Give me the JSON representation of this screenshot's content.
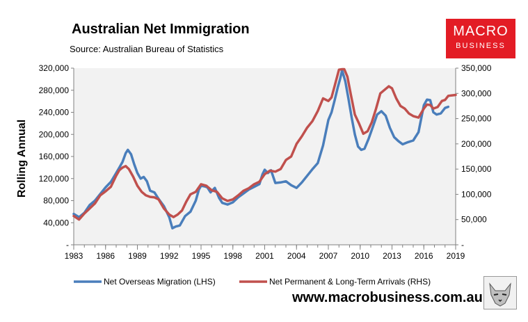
{
  "header": {
    "title": "Australian Net Immigration",
    "subtitle": "Source: Australian Bureau of Statistics"
  },
  "logo": {
    "line1": "MACRO",
    "line2": "BUSINESS",
    "color": "#e31c25"
  },
  "footer": {
    "url": "www.macrobusiness.com.au"
  },
  "chart_data": {
    "type": "line",
    "ylabel": "Rolling Annual",
    "x_ticks": [
      "1983",
      "1986",
      "1989",
      "1992",
      "1995",
      "1998",
      "2001",
      "2004",
      "2007",
      "2010",
      "2013",
      "2016",
      "2019"
    ],
    "y_left_ticks": [
      "-",
      "40,000",
      "80,000",
      "120,000",
      "160,000",
      "200,000",
      "240,000",
      "280,000",
      "320,000"
    ],
    "y_right_ticks": [
      "-",
      "50,000",
      "100,000",
      "150,000",
      "200,000",
      "250,000",
      "300,000",
      "350,000"
    ],
    "ylim_left": [
      0,
      320000
    ],
    "ylim_right": [
      0,
      350000
    ],
    "xlim": [
      1983,
      2019
    ],
    "legend_position": "bottom",
    "series": [
      {
        "name": "Net Overseas Migration (LHS)",
        "axis": "left",
        "color": "#4a7ebb",
        "x": [
          1983,
          1983.5,
          1984,
          1984.5,
          1985,
          1985.5,
          1986,
          1986.5,
          1987,
          1987.3,
          1987.6,
          1987.9,
          1988.1,
          1988.4,
          1988.7,
          1989,
          1989.3,
          1989.6,
          1989.9,
          1990.2,
          1990.6,
          1991,
          1991.5,
          1992,
          1992.3,
          1992.6,
          1993,
          1993.5,
          1994,
          1994.5,
          1994.8,
          1995,
          1995.3,
          1995.6,
          1995.9,
          1996.3,
          1996.7,
          1997,
          1997.5,
          1998,
          1998.5,
          1999,
          1999.5,
          2000,
          2000.5,
          2000.8,
          2001,
          2001.3,
          2001.6,
          2002,
          2002.5,
          2003,
          2003.5,
          2004,
          2004.5,
          2005,
          2005.5,
          2006,
          2006.5,
          2007,
          2007.3,
          2007.6,
          2007.9,
          2008.1,
          2008.3,
          2008.6,
          2008.9,
          2009.2,
          2009.5,
          2009.8,
          2010.1,
          2010.4,
          2010.8,
          2011.2,
          2011.6,
          2012,
          2012.4,
          2012.8,
          2013.2,
          2013.6,
          2014,
          2014.5,
          2015,
          2015.5,
          2016,
          2016.3,
          2016.6,
          2016.9,
          2017.2,
          2017.6,
          2018,
          2018.3
        ],
        "values": [
          56000,
          50000,
          58000,
          72000,
          80000,
          92000,
          104000,
          114000,
          130000,
          140000,
          150000,
          166000,
          172000,
          164000,
          146000,
          130000,
          120000,
          123000,
          115000,
          98000,
          95000,
          83000,
          70000,
          50000,
          30000,
          33000,
          35000,
          52000,
          60000,
          80000,
          100000,
          107000,
          106000,
          104000,
          95000,
          103000,
          85000,
          76000,
          73000,
          77000,
          86000,
          93000,
          100000,
          105000,
          110000,
          128000,
          136000,
          130000,
          135000,
          112000,
          113000,
          115000,
          108000,
          103000,
          113000,
          125000,
          137000,
          148000,
          180000,
          226000,
          240000,
          262000,
          286000,
          300000,
          316000,
          296000,
          264000,
          230000,
          200000,
          178000,
          172000,
          174000,
          192000,
          214000,
          236000,
          242000,
          234000,
          212000,
          195000,
          188000,
          182000,
          186000,
          189000,
          204000,
          253000,
          263000,
          262000,
          240000,
          236000,
          238000,
          248000,
          250000
        ]
      },
      {
        "name": "Net Permanent & Long-Term Arrivals (RHS)",
        "axis": "right",
        "color": "#c0504d",
        "x": [
          1983,
          1983.5,
          1984,
          1984.5,
          1985,
          1985.5,
          1986,
          1986.5,
          1987,
          1987.3,
          1987.6,
          1987.9,
          1988.2,
          1988.6,
          1989,
          1989.4,
          1989.8,
          1990.2,
          1990.6,
          1991,
          1991.5,
          1992,
          1992.4,
          1992.8,
          1993.2,
          1993.6,
          1994,
          1994.5,
          1995,
          1995.5,
          1996,
          1996.5,
          1997,
          1997.5,
          1998,
          1998.5,
          1999,
          1999.5,
          2000,
          2000.5,
          2001,
          2001.5,
          2002,
          2002.5,
          2003,
          2003.5,
          2004,
          2004.5,
          2005,
          2005.5,
          2006,
          2006.5,
          2007,
          2007.3,
          2007.6,
          2008,
          2008.3,
          2008.5,
          2008.8,
          2009.1,
          2009.5,
          2009.9,
          2010.3,
          2010.7,
          2011.1,
          2011.5,
          2011.9,
          2012.3,
          2012.7,
          2013,
          2013.4,
          2013.8,
          2014.2,
          2014.6,
          2015,
          2015.5,
          2016,
          2016.3,
          2016.6,
          2016.9,
          2017.3,
          2017.7,
          2018,
          2018.3,
          2018.6,
          2019
        ],
        "values": [
          57000,
          50000,
          62000,
          72000,
          82000,
          98000,
          106000,
          115000,
          137000,
          148000,
          153000,
          156000,
          150000,
          135000,
          117000,
          105000,
          98000,
          95000,
          94000,
          90000,
          72000,
          60000,
          55000,
          60000,
          68000,
          85000,
          100000,
          105000,
          120000,
          117000,
          108000,
          105000,
          92000,
          87000,
          90000,
          98000,
          107000,
          112000,
          120000,
          125000,
          140000,
          147000,
          145000,
          150000,
          168000,
          175000,
          200000,
          215000,
          232000,
          245000,
          265000,
          290000,
          285000,
          292000,
          315000,
          347000,
          348000,
          348000,
          333000,
          300000,
          258000,
          240000,
          220000,
          225000,
          243000,
          270000,
          300000,
          307000,
          314000,
          310000,
          290000,
          275000,
          270000,
          260000,
          255000,
          252000,
          270000,
          278000,
          277000,
          270000,
          273000,
          285000,
          287000,
          295000,
          296000,
          297000
        ]
      }
    ]
  }
}
